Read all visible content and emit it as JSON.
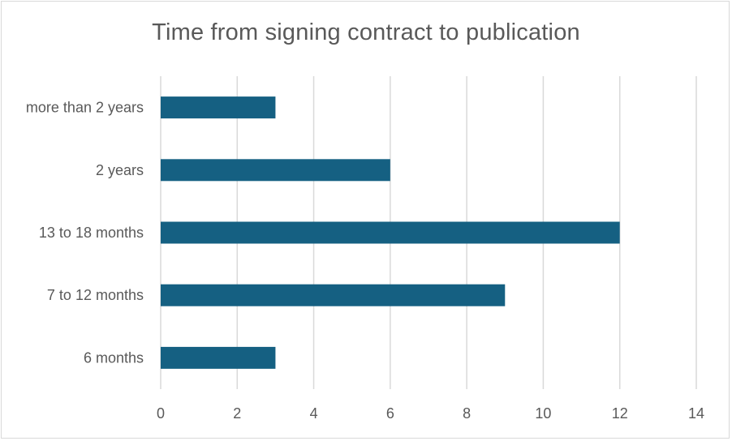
{
  "chart_data": {
    "type": "bar",
    "orientation": "horizontal",
    "title": "Time from signing contract to publication",
    "categories": [
      "6 months",
      "7 to 12 months",
      "13 to 18 months",
      "2 years",
      "more than 2 years"
    ],
    "values": [
      3,
      9,
      12,
      6,
      3
    ],
    "xlim": [
      0,
      14
    ],
    "xticks": [
      0,
      2,
      4,
      6,
      8,
      10,
      12,
      14
    ],
    "grid": "vertical",
    "bar_color": "#156082",
    "gridline_color": "#d9d9d9",
    "legend": "none"
  }
}
